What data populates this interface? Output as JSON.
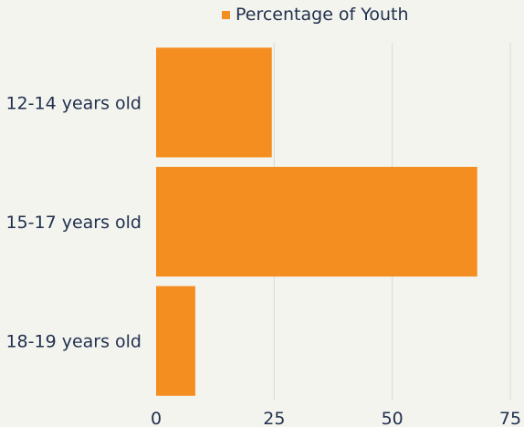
{
  "colors": {
    "bar": "#f58e20",
    "grid": "#d9dbd4",
    "text": "#1f2f4d",
    "background": "#f4f4ef"
  },
  "chart_data": {
    "type": "bar",
    "orientation": "horizontal",
    "categories": [
      "12-14 years old",
      "15-17 years old",
      "18-19 years old"
    ],
    "series": [
      {
        "name": "Percentage of Youth",
        "values": [
          24.5,
          68,
          8.3
        ]
      }
    ],
    "xlim": [
      0,
      75
    ],
    "xticks": [
      0,
      25,
      50,
      75
    ],
    "grid": true,
    "legend_position": "top"
  }
}
